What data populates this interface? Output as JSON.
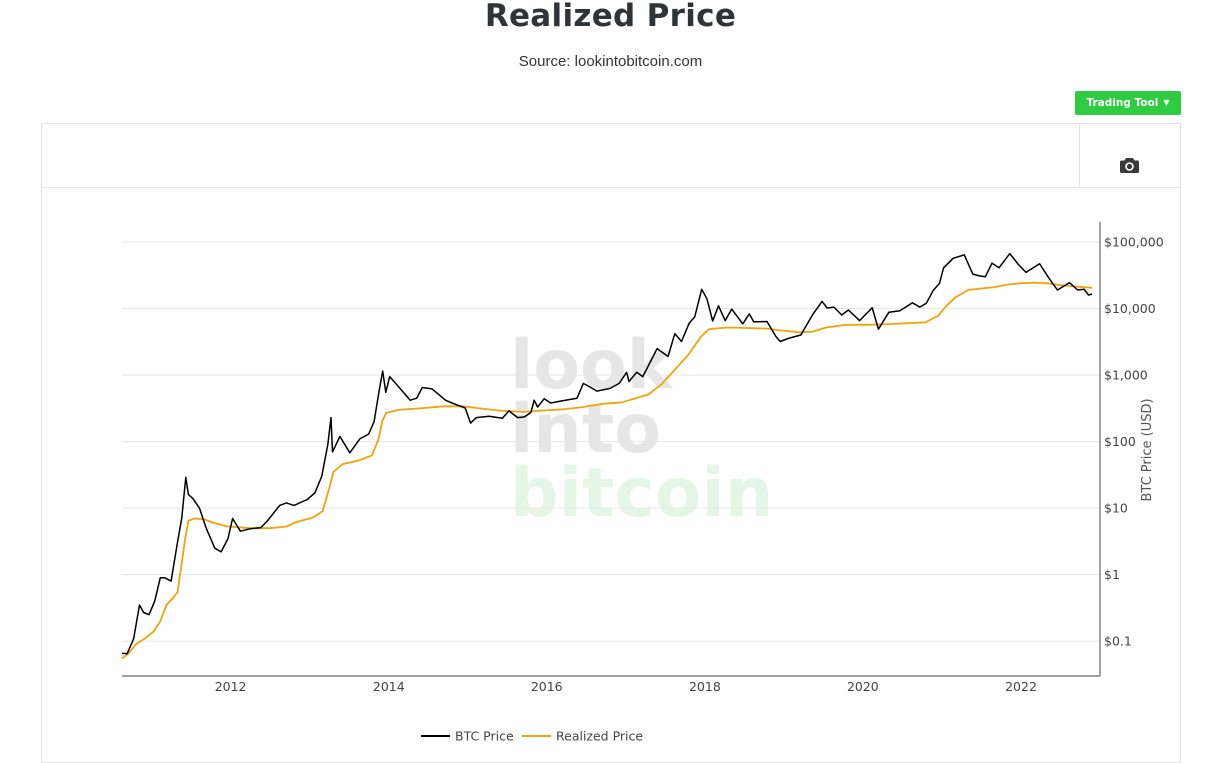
{
  "page": {
    "title": "Realized Price",
    "source": "Source: lookintobitcoin.com"
  },
  "toolbar": {
    "trading_tool_label": "Trading Tool",
    "camera_icon": "camera-icon"
  },
  "watermark": {
    "line1": "look",
    "line2": "into",
    "line3": "bitcoin"
  },
  "colors": {
    "btc_price": "#000000",
    "realized_price": "#f0a30a",
    "button": "#2ecc40",
    "watermark_gray": "#e6e6e6",
    "watermark_green": "#e4f7e6"
  },
  "chart_data": {
    "type": "line",
    "title": "",
    "xlabel": "",
    "ylabel": "BTC Price (USD)",
    "yscale": "log",
    "ylim": [
      0.03,
      200000
    ],
    "xlim": [
      "2010-08-17",
      "2023-01-01"
    ],
    "x_ticks": [
      "2012",
      "2014",
      "2016",
      "2018",
      "2020",
      "2022"
    ],
    "y_ticks": [
      {
        "value": 0.1,
        "label": "$0.1"
      },
      {
        "value": 1,
        "label": "$1"
      },
      {
        "value": 10,
        "label": "$10"
      },
      {
        "value": 100,
        "label": "$100"
      },
      {
        "value": 1000,
        "label": "$1,000"
      },
      {
        "value": 10000,
        "label": "$10,000"
      },
      {
        "value": 100000,
        "label": "$100,000"
      }
    ],
    "y_axis_side": "right",
    "grid": true,
    "legend_position": "bottom",
    "series": [
      {
        "name": "BTC Price",
        "color": "#000000",
        "points": [
          [
            "2010-08-17",
            0.066
          ],
          [
            "2010-09-10",
            0.065
          ],
          [
            "2010-10-10",
            0.11
          ],
          [
            "2010-11-06",
            0.35
          ],
          [
            "2010-11-25",
            0.27
          ],
          [
            "2010-12-20",
            0.25
          ],
          [
            "2011-01-15",
            0.4
          ],
          [
            "2011-02-10",
            0.9
          ],
          [
            "2011-03-01",
            0.9
          ],
          [
            "2011-04-01",
            0.8
          ],
          [
            "2011-04-30",
            3.0
          ],
          [
            "2011-05-20",
            7.0
          ],
          [
            "2011-06-08",
            29
          ],
          [
            "2011-06-20",
            16
          ],
          [
            "2011-07-10",
            14
          ],
          [
            "2011-08-10",
            10
          ],
          [
            "2011-09-10",
            5.0
          ],
          [
            "2011-10-20",
            2.5
          ],
          [
            "2011-11-18",
            2.2
          ],
          [
            "2011-12-20",
            3.5
          ],
          [
            "2012-01-10",
            7.0
          ],
          [
            "2012-02-15",
            4.5
          ],
          [
            "2012-03-30",
            4.9
          ],
          [
            "2012-05-20",
            5.1
          ],
          [
            "2012-06-20",
            6.5
          ],
          [
            "2012-08-15",
            11
          ],
          [
            "2012-09-15",
            12
          ],
          [
            "2012-10-20",
            11
          ],
          [
            "2012-12-20",
            13.5
          ],
          [
            "2013-01-25",
            17
          ],
          [
            "2013-02-25",
            30
          ],
          [
            "2013-03-25",
            90
          ],
          [
            "2013-04-09",
            230
          ],
          [
            "2013-04-16",
            70
          ],
          [
            "2013-05-20",
            120
          ],
          [
            "2013-07-05",
            68
          ],
          [
            "2013-08-20",
            110
          ],
          [
            "2013-09-30",
            130
          ],
          [
            "2013-10-25",
            200
          ],
          [
            "2013-11-18",
            600
          ],
          [
            "2013-12-04",
            1150
          ],
          [
            "2013-12-18",
            550
          ],
          [
            "2014-01-05",
            950
          ],
          [
            "2014-02-10",
            700
          ],
          [
            "2014-04-10",
            420
          ],
          [
            "2014-05-10",
            450
          ],
          [
            "2014-06-05",
            650
          ],
          [
            "2014-07-20",
            620
          ],
          [
            "2014-09-20",
            420
          ],
          [
            "2014-10-20",
            380
          ],
          [
            "2014-12-20",
            320
          ],
          [
            "2015-01-14",
            190
          ],
          [
            "2015-02-10",
            230
          ],
          [
            "2015-04-10",
            240
          ],
          [
            "2015-06-10",
            225
          ],
          [
            "2015-07-10",
            290
          ],
          [
            "2015-08-20",
            230
          ],
          [
            "2015-09-20",
            235
          ],
          [
            "2015-10-20",
            275
          ],
          [
            "2015-11-04",
            420
          ],
          [
            "2015-11-20",
            330
          ],
          [
            "2015-12-20",
            440
          ],
          [
            "2016-01-20",
            380
          ],
          [
            "2016-03-10",
            410
          ],
          [
            "2016-05-20",
            450
          ],
          [
            "2016-06-18",
            750
          ],
          [
            "2016-07-20",
            660
          ],
          [
            "2016-08-20",
            575
          ],
          [
            "2016-10-20",
            630
          ],
          [
            "2016-12-01",
            750
          ],
          [
            "2017-01-04",
            1100
          ],
          [
            "2017-01-15",
            800
          ],
          [
            "2017-02-20",
            1100
          ],
          [
            "2017-03-20",
            950
          ],
          [
            "2017-05-25",
            2500
          ],
          [
            "2017-07-15",
            1900
          ],
          [
            "2017-08-15",
            4200
          ],
          [
            "2017-09-15",
            3200
          ],
          [
            "2017-10-20",
            6000
          ],
          [
            "2017-11-15",
            7500
          ],
          [
            "2017-12-17",
            19500
          ],
          [
            "2018-01-10",
            14000
          ],
          [
            "2018-02-06",
            6500
          ],
          [
            "2018-03-05",
            11000
          ],
          [
            "2018-04-05",
            6600
          ],
          [
            "2018-05-05",
            9800
          ],
          [
            "2018-06-25",
            5900
          ],
          [
            "2018-07-25",
            8300
          ],
          [
            "2018-08-15",
            6300
          ],
          [
            "2018-10-15",
            6400
          ],
          [
            "2018-11-25",
            3800
          ],
          [
            "2018-12-15",
            3200
          ],
          [
            "2019-01-20",
            3550
          ],
          [
            "2019-03-20",
            4000
          ],
          [
            "2019-05-15",
            8200
          ],
          [
            "2019-06-26",
            12800
          ],
          [
            "2019-07-20",
            10200
          ],
          [
            "2019-08-20",
            10500
          ],
          [
            "2019-09-25",
            8000
          ],
          [
            "2019-10-26",
            9500
          ],
          [
            "2019-12-17",
            6600
          ],
          [
            "2020-02-13",
            10300
          ],
          [
            "2020-03-13",
            4900
          ],
          [
            "2020-04-30",
            8800
          ],
          [
            "2020-06-20",
            9300
          ],
          [
            "2020-08-17",
            12200
          ],
          [
            "2020-09-20",
            10500
          ],
          [
            "2020-10-20",
            12000
          ],
          [
            "2020-11-20",
            18500
          ],
          [
            "2020-12-20",
            24000
          ],
          [
            "2021-01-08",
            41000
          ],
          [
            "2021-02-21",
            57000
          ],
          [
            "2021-04-14",
            64000
          ],
          [
            "2021-05-23",
            33000
          ],
          [
            "2021-06-22",
            31000
          ],
          [
            "2021-07-20",
            30000
          ],
          [
            "2021-08-20",
            48000
          ],
          [
            "2021-09-21",
            41000
          ],
          [
            "2021-11-10",
            67000
          ],
          [
            "2021-12-20",
            46000
          ],
          [
            "2022-01-24",
            35000
          ],
          [
            "2022-03-28",
            47000
          ],
          [
            "2022-05-12",
            28000
          ],
          [
            "2022-06-18",
            19000
          ],
          [
            "2022-08-13",
            24500
          ],
          [
            "2022-09-20",
            19000
          ],
          [
            "2022-10-20",
            19500
          ],
          [
            "2022-11-09",
            16000
          ],
          [
            "2022-11-25",
            16500
          ]
        ]
      },
      {
        "name": "Realized Price",
        "color": "#f0a30a",
        "points": [
          [
            "2010-08-17",
            0.055
          ],
          [
            "2010-09-15",
            0.065
          ],
          [
            "2010-10-20",
            0.09
          ],
          [
            "2010-12-01",
            0.11
          ],
          [
            "2011-01-10",
            0.14
          ],
          [
            "2011-02-10",
            0.2
          ],
          [
            "2011-03-10",
            0.35
          ],
          [
            "2011-04-10",
            0.45
          ],
          [
            "2011-05-01",
            0.55
          ],
          [
            "2011-05-20",
            1.5
          ],
          [
            "2011-06-05",
            3.5
          ],
          [
            "2011-06-20",
            6.5
          ],
          [
            "2011-07-20",
            7.0
          ],
          [
            "2011-09-01",
            6.8
          ],
          [
            "2011-10-15",
            6.0
          ],
          [
            "2011-12-20",
            5.3
          ],
          [
            "2012-04-01",
            5.0
          ],
          [
            "2012-07-01",
            5.0
          ],
          [
            "2012-09-15",
            5.3
          ],
          [
            "2012-11-01",
            6.2
          ],
          [
            "2013-01-15",
            7.2
          ],
          [
            "2013-03-01",
            9.0
          ],
          [
            "2013-04-01",
            20
          ],
          [
            "2013-04-20",
            35
          ],
          [
            "2013-06-01",
            46
          ],
          [
            "2013-08-15",
            52
          ],
          [
            "2013-10-15",
            62
          ],
          [
            "2013-11-15",
            110
          ],
          [
            "2013-12-01",
            200
          ],
          [
            "2013-12-20",
            270
          ],
          [
            "2014-02-15",
            300
          ],
          [
            "2014-06-15",
            320
          ],
          [
            "2014-09-15",
            340
          ],
          [
            "2014-12-15",
            340
          ],
          [
            "2015-03-15",
            310
          ],
          [
            "2015-06-15",
            290
          ],
          [
            "2015-09-15",
            280
          ],
          [
            "2015-11-15",
            290
          ],
          [
            "2016-03-15",
            305
          ],
          [
            "2016-06-15",
            330
          ],
          [
            "2016-09-15",
            370
          ],
          [
            "2016-12-15",
            390
          ],
          [
            "2017-02-15",
            450
          ],
          [
            "2017-04-15",
            510
          ],
          [
            "2017-06-15",
            730
          ],
          [
            "2017-08-15",
            1200
          ],
          [
            "2017-10-15",
            2000
          ],
          [
            "2017-12-15",
            3800
          ],
          [
            "2018-01-20",
            4900
          ],
          [
            "2018-04-15",
            5200
          ],
          [
            "2018-07-15",
            5100
          ],
          [
            "2018-10-15",
            5000
          ],
          [
            "2018-12-15",
            4700
          ],
          [
            "2019-03-15",
            4400
          ],
          [
            "2019-05-15",
            4500
          ],
          [
            "2019-07-15",
            5200
          ],
          [
            "2019-10-15",
            5700
          ],
          [
            "2020-01-15",
            5700
          ],
          [
            "2020-04-15",
            5800
          ],
          [
            "2020-07-15",
            6000
          ],
          [
            "2020-10-15",
            6200
          ],
          [
            "2020-12-15",
            7800
          ],
          [
            "2021-01-15",
            10500
          ],
          [
            "2021-03-01",
            14500
          ],
          [
            "2021-05-01",
            19000
          ],
          [
            "2021-07-01",
            20000
          ],
          [
            "2021-09-01",
            21000
          ],
          [
            "2021-11-01",
            23000
          ],
          [
            "2022-01-01",
            24000
          ],
          [
            "2022-03-01",
            24500
          ],
          [
            "2022-05-01",
            24000
          ],
          [
            "2022-07-01",
            22500
          ],
          [
            "2022-09-01",
            21500
          ],
          [
            "2022-11-25",
            20500
          ]
        ]
      }
    ]
  }
}
